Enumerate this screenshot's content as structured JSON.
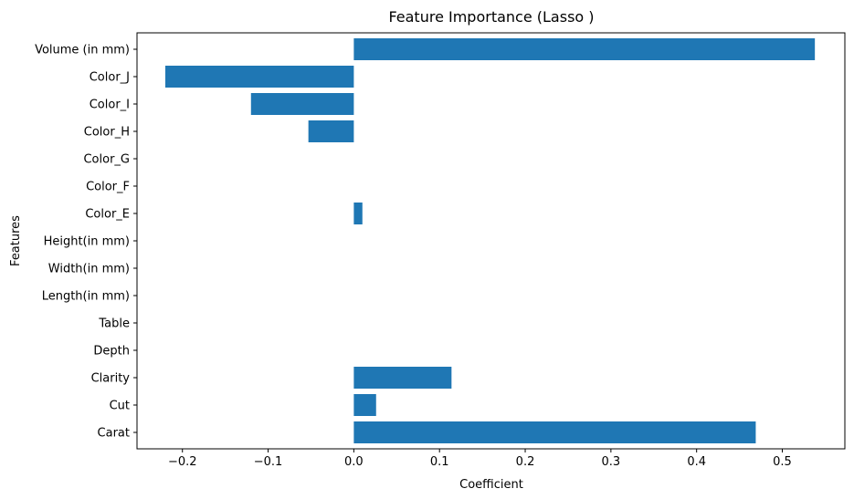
{
  "chart_data": {
    "type": "bar",
    "orientation": "horizontal",
    "title": "Feature Importance (Lasso )",
    "xlabel": "Coefficient",
    "ylabel": "Features",
    "xlim": [
      -0.253,
      0.573
    ],
    "xticks": [
      -0.2,
      -0.1,
      0.0,
      0.1,
      0.2,
      0.3,
      0.4,
      0.5
    ],
    "xtick_labels": [
      "−0.2",
      "−0.1",
      "0.0",
      "0.1",
      "0.2",
      "0.3",
      "0.4",
      "0.5"
    ],
    "grid": false,
    "bar_color": "#1f77b4",
    "categories": [
      "Carat",
      "Cut",
      "Clarity",
      "Depth",
      "Table",
      "Length(in mm)",
      "Width(in mm)",
      "Height(in mm)",
      "Color_E",
      "Color_F",
      "Color_G",
      "Color_H",
      "Color_I",
      "Color_J",
      "Volume (in mm)"
    ],
    "values": [
      0.469,
      0.026,
      0.114,
      0.0,
      0.0,
      0.0,
      0.0,
      0.0,
      0.01,
      0.0,
      0.0,
      -0.053,
      -0.12,
      -0.22,
      0.538
    ]
  }
}
